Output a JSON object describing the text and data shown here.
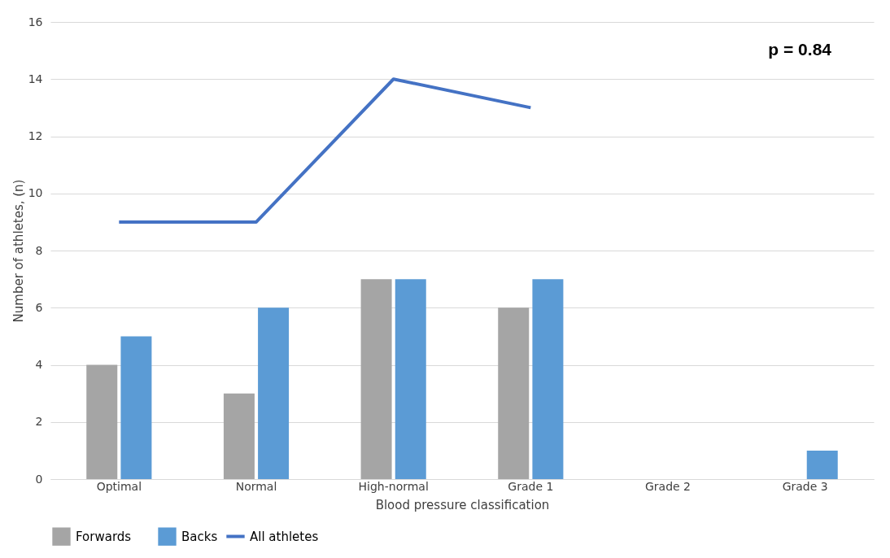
{
  "chart_data": {
    "type": "bar",
    "xlabel": "Blood pressure classification",
    "ylabel": "Number of athletes, (n)",
    "categories": [
      "Optimal",
      "Normal",
      "High-normal",
      "Grade 1",
      "Grade 2",
      "Grade 3"
    ],
    "series": [
      {
        "name": "Forwards",
        "color": "#a5a5a5",
        "values": [
          4,
          3,
          7,
          6,
          0,
          0
        ]
      },
      {
        "name": "Backs",
        "color": "#5b9bd5",
        "values": [
          5,
          6,
          7,
          7,
          0,
          1
        ]
      },
      {
        "name": "All athletes",
        "type": "line",
        "color": "#4472c4",
        "values": [
          9,
          9,
          14,
          13,
          null,
          null
        ]
      }
    ],
    "ylim": [
      0,
      16
    ],
    "yticks": [
      0,
      2,
      4,
      6,
      8,
      10,
      12,
      14,
      16
    ],
    "grid": "y",
    "legend": "bottom",
    "line_style": "solid",
    "annotations": [
      "p = 0.84"
    ]
  }
}
